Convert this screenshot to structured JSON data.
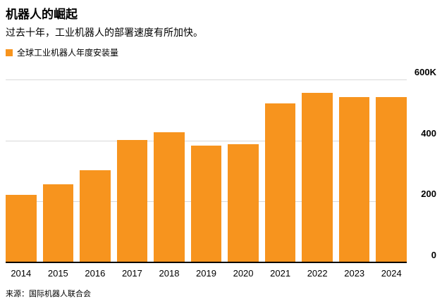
{
  "header": {
    "title": "机器人的崛起",
    "subtitle": "过去十年，工业机器人的部署速度有所加快。"
  },
  "legend": {
    "label": "全球工业机器人年度安装量",
    "swatch_color": "#F7941E"
  },
  "footer": {
    "source": "来源：国际机器人联合会"
  },
  "chart_data": {
    "type": "bar",
    "title": "全球工业机器人年度安装量",
    "categories": [
      "2014",
      "2015",
      "2016",
      "2017",
      "2018",
      "2019",
      "2020",
      "2021",
      "2022",
      "2023",
      "2024"
    ],
    "values": [
      220,
      255,
      300,
      400,
      425,
      380,
      385,
      520,
      553,
      540,
      540
    ],
    "unit": "K (thousands of units)",
    "xlabel": "",
    "ylabel": "",
    "ylim": [
      0,
      600
    ],
    "yticks": [
      {
        "value": 0,
        "label": "0"
      },
      {
        "value": 200,
        "label": "200"
      },
      {
        "value": 400,
        "label": "400"
      },
      {
        "value": 600,
        "label": "600K"
      }
    ],
    "bar_color": "#F7941E",
    "grid": "horizontal",
    "gridline_color": "#d9d9d9",
    "tick_label_position": "right",
    "legend_position": "top-left"
  }
}
